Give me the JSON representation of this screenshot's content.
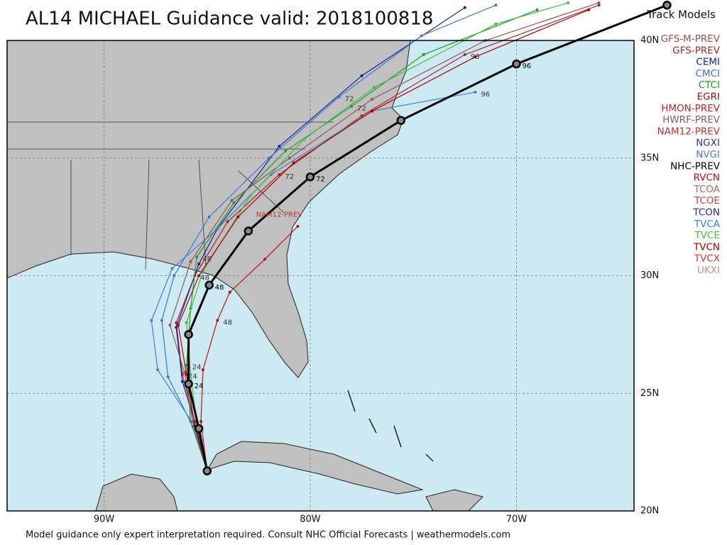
{
  "title": "AL14 MICHAEL Guidance valid: 2018100818",
  "footer": "Model guidance only expert interpretation required. Consult NHC Official Forecasts | weathermodels.com",
  "legend": {
    "title": "Track Models",
    "models": [
      {
        "name": "GFS-M-PREV",
        "color": "#a05050"
      },
      {
        "name": "GFS-PREV",
        "color": "#b22222"
      },
      {
        "name": "CEMI",
        "color": "#1c1c9c"
      },
      {
        "name": "CMCI",
        "color": "#3a78c8"
      },
      {
        "name": "CTCI",
        "color": "#229922"
      },
      {
        "name": "EGRI",
        "color": "#a01010"
      },
      {
        "name": "HMON-PREV",
        "color": "#cc2222"
      },
      {
        "name": "HWRF-PREV",
        "color": "#8a5a5a"
      },
      {
        "name": "NAM12-PREV",
        "color": "#c03030"
      },
      {
        "name": "NGXI",
        "color": "#303090"
      },
      {
        "name": "NVGI",
        "color": "#4a7ad0"
      },
      {
        "name": "NHC-PREV",
        "color": "#000000"
      },
      {
        "name": "RVCN",
        "color": "#bb1111"
      },
      {
        "name": "TCOA",
        "color": "#9a7070"
      },
      {
        "name": "TCOE",
        "color": "#cc4444"
      },
      {
        "name": "TCON",
        "color": "#2a2aa0"
      },
      {
        "name": "TVCA",
        "color": "#4080d0"
      },
      {
        "name": "TVCE",
        "color": "#44bb44"
      },
      {
        "name": "TVCN",
        "color": "#aa0000"
      },
      {
        "name": "TVCX",
        "color": "#dd3322"
      },
      {
        "name": "UKXI",
        "color": "#c09090"
      }
    ]
  },
  "map": {
    "lon_range": [
      -94.7,
      -64.3
    ],
    "lat_range": [
      20,
      40
    ],
    "lat_ticks": [
      {
        "value": 40,
        "label": "40N"
      },
      {
        "value": 35,
        "label": "35N"
      },
      {
        "value": 30,
        "label": "30N"
      },
      {
        "value": 25,
        "label": "25N"
      },
      {
        "value": 20,
        "label": "20N"
      }
    ],
    "lon_ticks": [
      {
        "value": -90,
        "label": "90W"
      },
      {
        "value": -80,
        "label": "80W"
      },
      {
        "value": -70,
        "label": "70W"
      }
    ],
    "grid": true
  },
  "annotations": [
    {
      "text": "NAM12-PREV",
      "lon": -81.5,
      "lat": 32.6,
      "color": "#c03030"
    }
  ],
  "tracks": [
    {
      "color": "#b22222",
      "points": [
        {
          "lon": -85,
          "lat": 21.7
        },
        {
          "lon": -85.6,
          "lat": 23.8
        },
        {
          "lon": -86.2,
          "lat": 25.8,
          "label": "24"
        },
        {
          "lon": -86.5,
          "lat": 28
        },
        {
          "lon": -85.6,
          "lat": 30,
          "label": "48"
        },
        {
          "lon": -84,
          "lat": 32.3
        },
        {
          "lon": -81.5,
          "lat": 34.3,
          "label": "72"
        },
        {
          "lon": -77.5,
          "lat": 36.8
        },
        {
          "lon": -72.5,
          "lat": 39.4,
          "label": "96"
        },
        {
          "lon": -66,
          "lat": 41.5
        }
      ]
    },
    {
      "color": "#1c1c9c",
      "points": [
        {
          "lon": -85,
          "lat": 21.7
        },
        {
          "lon": -85.5,
          "lat": 23.5
        },
        {
          "lon": -86.2,
          "lat": 25.5
        },
        {
          "lon": -86.5,
          "lat": 27.8
        },
        {
          "lon": -85.4,
          "lat": 30.5
        },
        {
          "lon": -84.5,
          "lat": 32
        },
        {
          "lon": -81.5,
          "lat": 35.5
        },
        {
          "lon": -77.5,
          "lat": 38.5
        },
        {
          "lon": -72.5,
          "lat": 41.4
        }
      ]
    },
    {
      "color": "#3a78c8",
      "points": [
        {
          "lon": -85,
          "lat": 21.7
        },
        {
          "lon": -85.7,
          "lat": 23.6
        },
        {
          "lon": -86.9,
          "lat": 25.7
        },
        {
          "lon": -87.2,
          "lat": 28.1
        },
        {
          "lon": -86.6,
          "lat": 30
        },
        {
          "lon": -84.9,
          "lat": 32.5
        },
        {
          "lon": -82,
          "lat": 35
        },
        {
          "lon": -78.6,
          "lat": 37.6,
          "label": "72"
        },
        {
          "lon": -74.6,
          "lat": 40.2
        },
        {
          "lon": -71,
          "lat": 41.5
        }
      ]
    },
    {
      "color": "#229922",
      "points": [
        {
          "lon": -85,
          "lat": 21.7
        },
        {
          "lon": -85.8,
          "lat": 23.8
        },
        {
          "lon": -86,
          "lat": 26.2,
          "label": "24"
        },
        {
          "lon": -85.8,
          "lat": 28.6
        },
        {
          "lon": -85.5,
          "lat": 30.8,
          "label": "48"
        },
        {
          "lon": -83.7,
          "lat": 33.1
        },
        {
          "lon": -81.2,
          "lat": 35.3
        },
        {
          "lon": -78,
          "lat": 37.2,
          "label": "72"
        },
        {
          "lon": -74.5,
          "lat": 39.4
        },
        {
          "lon": -69,
          "lat": 41.3
        }
      ]
    },
    {
      "color": "#4080d0",
      "points": [
        {
          "lon": -85,
          "lat": 21.7
        },
        {
          "lon": -85.6,
          "lat": 23.6
        },
        {
          "lon": -87.4,
          "lat": 26
        },
        {
          "lon": -87.7,
          "lat": 28.1
        },
        {
          "lon": -86.7,
          "lat": 30.3
        },
        {
          "lon": -84.5,
          "lat": 32
        },
        {
          "lon": -81.9,
          "lat": 34.3
        },
        {
          "lon": -77,
          "lat": 37
        },
        {
          "lon": -72.0,
          "lat": 37.8,
          "label": "96"
        }
      ]
    },
    {
      "color": "#8a5a5a",
      "points": [
        {
          "lon": -85,
          "lat": 21.7
        },
        {
          "lon": -85.7,
          "lat": 23.8
        },
        {
          "lon": -86.1,
          "lat": 25.9
        },
        {
          "lon": -86.8,
          "lat": 27.9
        },
        {
          "lon": -85.8,
          "lat": 30.6
        },
        {
          "lon": -83.8,
          "lat": 33.2
        },
        {
          "lon": -81,
          "lat": 35
        },
        {
          "lon": -77,
          "lat": 37.5
        },
        {
          "lon": -71.5,
          "lat": 40
        },
        {
          "lon": -66,
          "lat": 41.6
        }
      ]
    },
    {
      "color": "#44bb44",
      "points": [
        {
          "lon": -85,
          "lat": 21.7
        },
        {
          "lon": -85.5,
          "lat": 23.7
        },
        {
          "lon": -85.8,
          "lat": 25.8
        },
        {
          "lon": -86,
          "lat": 28
        },
        {
          "lon": -85.2,
          "lat": 30.2
        },
        {
          "lon": -82.9,
          "lat": 33.4
        },
        {
          "lon": -80.3,
          "lat": 35.8
        },
        {
          "lon": -76.9,
          "lat": 38
        },
        {
          "lon": -71,
          "lat": 40.7
        },
        {
          "lon": -67.5,
          "lat": 41.6
        }
      ]
    },
    {
      "color": "#aa0000",
      "points": [
        {
          "lon": -85,
          "lat": 21.7
        },
        {
          "lon": -85.6,
          "lat": 23.6
        },
        {
          "lon": -86,
          "lat": 25.8
        },
        {
          "lon": -86.4,
          "lat": 27.9
        },
        {
          "lon": -85.4,
          "lat": 30
        },
        {
          "lon": -83.5,
          "lat": 32.5
        },
        {
          "lon": -80.8,
          "lat": 34.8
        },
        {
          "lon": -77,
          "lat": 37
        },
        {
          "lon": -72,
          "lat": 39.3
        },
        {
          "lon": -66.5,
          "lat": 41.3
        }
      ]
    },
    {
      "color": "#bb1111",
      "points": [
        {
          "lon": -85,
          "lat": 21.7
        },
        {
          "lon": -85.3,
          "lat": 23.8
        },
        {
          "lon": -85.2,
          "lat": 26
        },
        {
          "lon": -84.5,
          "lat": 28.1,
          "label": "48"
        },
        {
          "lon": -83.9,
          "lat": 29.3
        },
        {
          "lon": -82.2,
          "lat": 30.7
        },
        {
          "lon": -80.6,
          "lat": 32.1
        }
      ]
    },
    {
      "color": "#000000",
      "points": [
        {
          "lon": -85.0,
          "lat": 21.7
        },
        {
          "lon": -85.4,
          "lat": 23.5
        },
        {
          "lon": -85.9,
          "lat": 25.4,
          "label": "24"
        },
        {
          "lon": -85.9,
          "lat": 27.5
        },
        {
          "lon": -84.9,
          "lat": 29.6,
          "label": "48"
        },
        {
          "lon": -83.0,
          "lat": 31.9
        },
        {
          "lon": -80.0,
          "lat": 34.2,
          "label": "72"
        },
        {
          "lon": -75.6,
          "lat": 36.6
        },
        {
          "lon": -70.0,
          "lat": 39.0,
          "label": "96"
        },
        {
          "lon": -62.7,
          "lat": 41.5
        }
      ]
    }
  ]
}
